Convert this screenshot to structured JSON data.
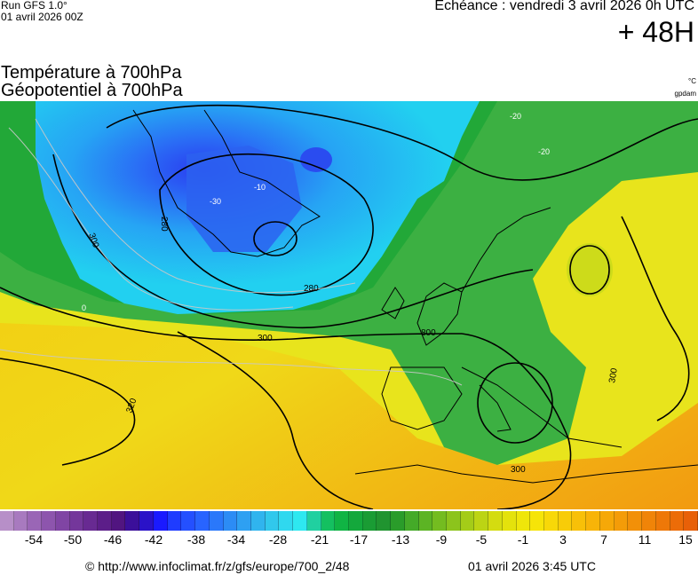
{
  "header": {
    "run_label": "Run GFS 1.0°",
    "run_date": "01 avril 2026 00Z",
    "valid_label": "Echéance : vendredi 3 avril 2026 0h UTC",
    "lead_time": "+ 48H"
  },
  "title": {
    "line1": "Température à 700hPa",
    "line2": "Géopotentiel à 700hPa",
    "unit_temperature": "°C",
    "unit_geopotential": "gpdam"
  },
  "map": {
    "variable_colors": {
      "cold_deep": "#2255ee",
      "cold": "#22aaff",
      "cool": "#22c8ee",
      "mild": "#33b044",
      "warm": "#e8e020",
      "hot": "#f4a010"
    },
    "geopotential_labels": [
      "280",
      "280",
      "300",
      "300",
      "300",
      "300",
      "300",
      "320",
      "800"
    ],
    "isotherm_labels": [
      "-30",
      "-20",
      "-20",
      "-10",
      "0"
    ]
  },
  "legend": {
    "ticks": [
      "-54",
      "-50",
      "-46",
      "-42",
      "-38",
      "-34",
      "-28",
      "-21",
      "-17",
      "-13",
      "-9",
      "-5",
      "-1",
      "3",
      "7",
      "11",
      "15"
    ],
    "colors": [
      "#b78fc8",
      "#a87abf",
      "#9a66b6",
      "#8d55ad",
      "#8045a4",
      "#74379b",
      "#682a92",
      "#5c1e89",
      "#511580",
      "#3b0f9a",
      "#2a12c8",
      "#1a1aff",
      "#1f3cff",
      "#2450ff",
      "#2864ff",
      "#2a78fa",
      "#2c8cf5",
      "#2ea0f2",
      "#30b4ee",
      "#31c8ec",
      "#30d8ef",
      "#2ee8f0",
      "#20d0a0",
      "#14c060",
      "#10b444",
      "#14a83c",
      "#1a9c34",
      "#209430",
      "#2a9c2a",
      "#44aa28",
      "#5cb424",
      "#74bc20",
      "#8cc41c",
      "#a4cc18",
      "#bcd414",
      "#d4dc10",
      "#e4e20c",
      "#efe60a",
      "#f6e408",
      "#f8d808",
      "#f8cc08",
      "#f8c008",
      "#f8b408",
      "#f6a808",
      "#f49c08",
      "#f29008",
      "#f08408",
      "#ee7808",
      "#ec6c08",
      "#e86008"
    ]
  },
  "footer": {
    "url": "© http://www.infoclimat.fr/z/gfs/europe/700_2/48",
    "generated": "01 avril 2026  3:45 UTC"
  }
}
